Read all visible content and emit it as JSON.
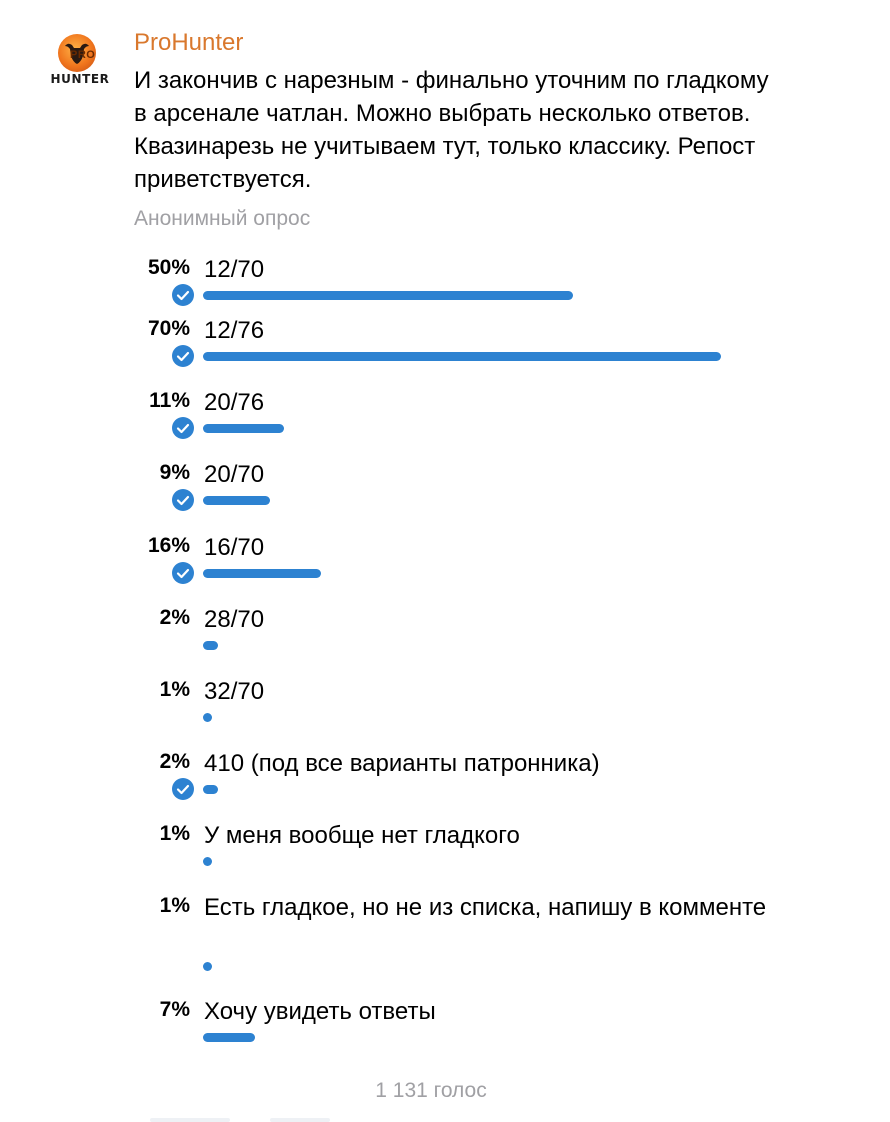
{
  "channel": {
    "name": "ProHunter",
    "logo_text_top": "PRO",
    "logo_text_bottom": "HUNTER"
  },
  "poll": {
    "question": "И закончив с нарезным - финально уточним по гладкому в арсенале чатлан. Можно выбрать несколько ответов. Квазинарезь не учитываем тут, только классику. Репост приветствуется.",
    "type_label": "Анонимный опрос",
    "total_votes": "1 131 голос",
    "accent_color": "#2d82d1",
    "options": [
      {
        "percent": "50%",
        "value": 50,
        "text": "12/70",
        "selected": true
      },
      {
        "percent": "70%",
        "value": 70,
        "text": "12/76",
        "selected": true
      },
      {
        "percent": "11%",
        "value": 11,
        "text": "20/76",
        "selected": true
      },
      {
        "percent": "9%",
        "value": 9,
        "text": "20/70",
        "selected": true
      },
      {
        "percent": "16%",
        "value": 16,
        "text": "16/70",
        "selected": true
      },
      {
        "percent": "2%",
        "value": 2,
        "text": "28/70",
        "selected": false
      },
      {
        "percent": "1%",
        "value": 1,
        "text": "32/70",
        "selected": false
      },
      {
        "percent": "2%",
        "value": 2,
        "text": "410 (под все варианты патронника)",
        "selected": true
      },
      {
        "percent": "1%",
        "value": 1,
        "text": "У меня вообще нет гладкого",
        "selected": false
      },
      {
        "percent": "1%",
        "value": 1,
        "text": "Есть гладкое, но не из списка, напишу в комменте",
        "selected": false
      },
      {
        "percent": "7%",
        "value": 7,
        "text": "Хочу увидеть ответы",
        "selected": false
      }
    ]
  }
}
